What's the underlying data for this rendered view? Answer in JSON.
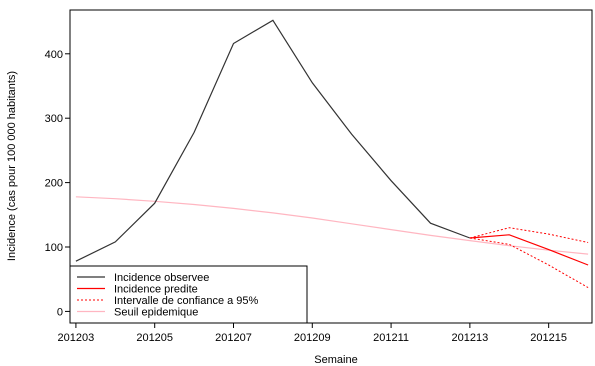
{
  "chart_data": {
    "type": "line",
    "title": "",
    "xlabel": "Semaine",
    "ylabel": "Incidence (cas pour 100 000 habitants)",
    "xlim": [
      201202.85,
      201216.1
    ],
    "ylim": [
      -18,
      468
    ],
    "x_ticks": [
      201203,
      201205,
      201207,
      201209,
      201211,
      201213,
      201215
    ],
    "x_tick_labels": [
      "201203",
      "201205",
      "201207",
      "201209",
      "201211",
      "201213",
      "201215"
    ],
    "y_ticks": [
      0,
      100,
      200,
      300,
      400
    ],
    "y_tick_labels": [
      "0",
      "100",
      "200",
      "300",
      "400"
    ],
    "grid": false,
    "legend_position": "bottom-left",
    "series": [
      {
        "name": "Incidence observee",
        "color": "#333333",
        "style": "solid",
        "x": [
          201203,
          201204,
          201205,
          201206,
          201207,
          201208,
          201209,
          201210,
          201211,
          201212,
          201213
        ],
        "y": [
          78,
          108,
          168,
          278,
          416,
          452,
          355,
          275,
          203,
          137,
          114
        ]
      },
      {
        "name": "Incidence predite",
        "color": "#ff0000",
        "style": "solid",
        "x": [
          201213,
          201214,
          201215,
          201216
        ],
        "y": [
          114,
          119,
          96,
          72
        ]
      },
      {
        "name": "Intervalle de confiance a 95%",
        "color": "#ff0000",
        "style": "dotted",
        "x": [
          201213,
          201214,
          201215,
          201216
        ],
        "y": [
          114,
          130,
          120,
          107
        ]
      },
      {
        "name": "",
        "color": "#ff0000",
        "style": "dotted",
        "x": [
          201213,
          201214,
          201215,
          201216
        ],
        "y": [
          114,
          104,
          72,
          37
        ]
      },
      {
        "name": "Seuil epidemique",
        "color": "#ffb6c1",
        "style": "solid",
        "x": [
          201203,
          201204,
          201205,
          201206,
          201207,
          201208,
          201209,
          201210,
          201211,
          201212,
          201213,
          201214,
          201215,
          201216
        ],
        "y": [
          178,
          175,
          171,
          166,
          160,
          153,
          145,
          136,
          127,
          118,
          110,
          102,
          95,
          89
        ]
      }
    ]
  }
}
